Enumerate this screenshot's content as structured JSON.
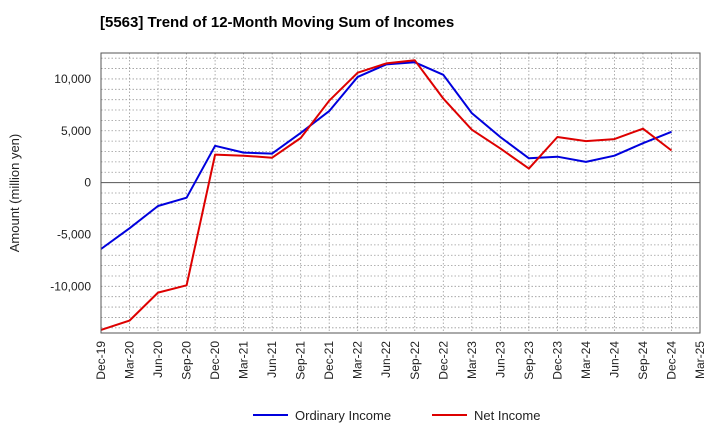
{
  "chart_data": {
    "type": "line",
    "title": "[5563]  Trend of 12-Month Moving Sum of Incomes",
    "xlabel": "",
    "ylabel": "Amount (million yen)",
    "ylim": [
      -14500,
      12500
    ],
    "yticks": [
      10000,
      5000,
      0,
      -5000,
      -10000
    ],
    "ytick_labels": [
      "10,000",
      "5,000",
      "0",
      "-5,000",
      "-10,000"
    ],
    "grid": true,
    "legend_position": "bottom-center",
    "categories": [
      "Dec-19",
      "Mar-20",
      "Jun-20",
      "Sep-20",
      "Dec-20",
      "Mar-21",
      "Jun-21",
      "Sep-21",
      "Dec-21",
      "Mar-22",
      "Jun-22",
      "Sep-22",
      "Dec-22",
      "Mar-23",
      "Jun-23",
      "Sep-23",
      "Dec-23",
      "Mar-24",
      "Jun-24",
      "Sep-24",
      "Dec-24",
      "Mar-25"
    ],
    "series": [
      {
        "name": "Ordinary Income",
        "color": "#0000dd",
        "values": [
          -6400,
          -4400,
          -2250,
          -1450,
          3550,
          2900,
          2800,
          4800,
          6900,
          10200,
          11400,
          11600,
          10400,
          6700,
          4400,
          2350,
          2500,
          2000,
          2600,
          3800,
          4900,
          null
        ]
      },
      {
        "name": "Net Income",
        "color": "#dd0000",
        "values": [
          -14200,
          -13300,
          -10600,
          -9900,
          2700,
          2600,
          2400,
          4300,
          7900,
          10600,
          11500,
          11800,
          8100,
          5100,
          3300,
          1350,
          4400,
          4000,
          4200,
          5200,
          3100,
          null
        ]
      }
    ]
  }
}
